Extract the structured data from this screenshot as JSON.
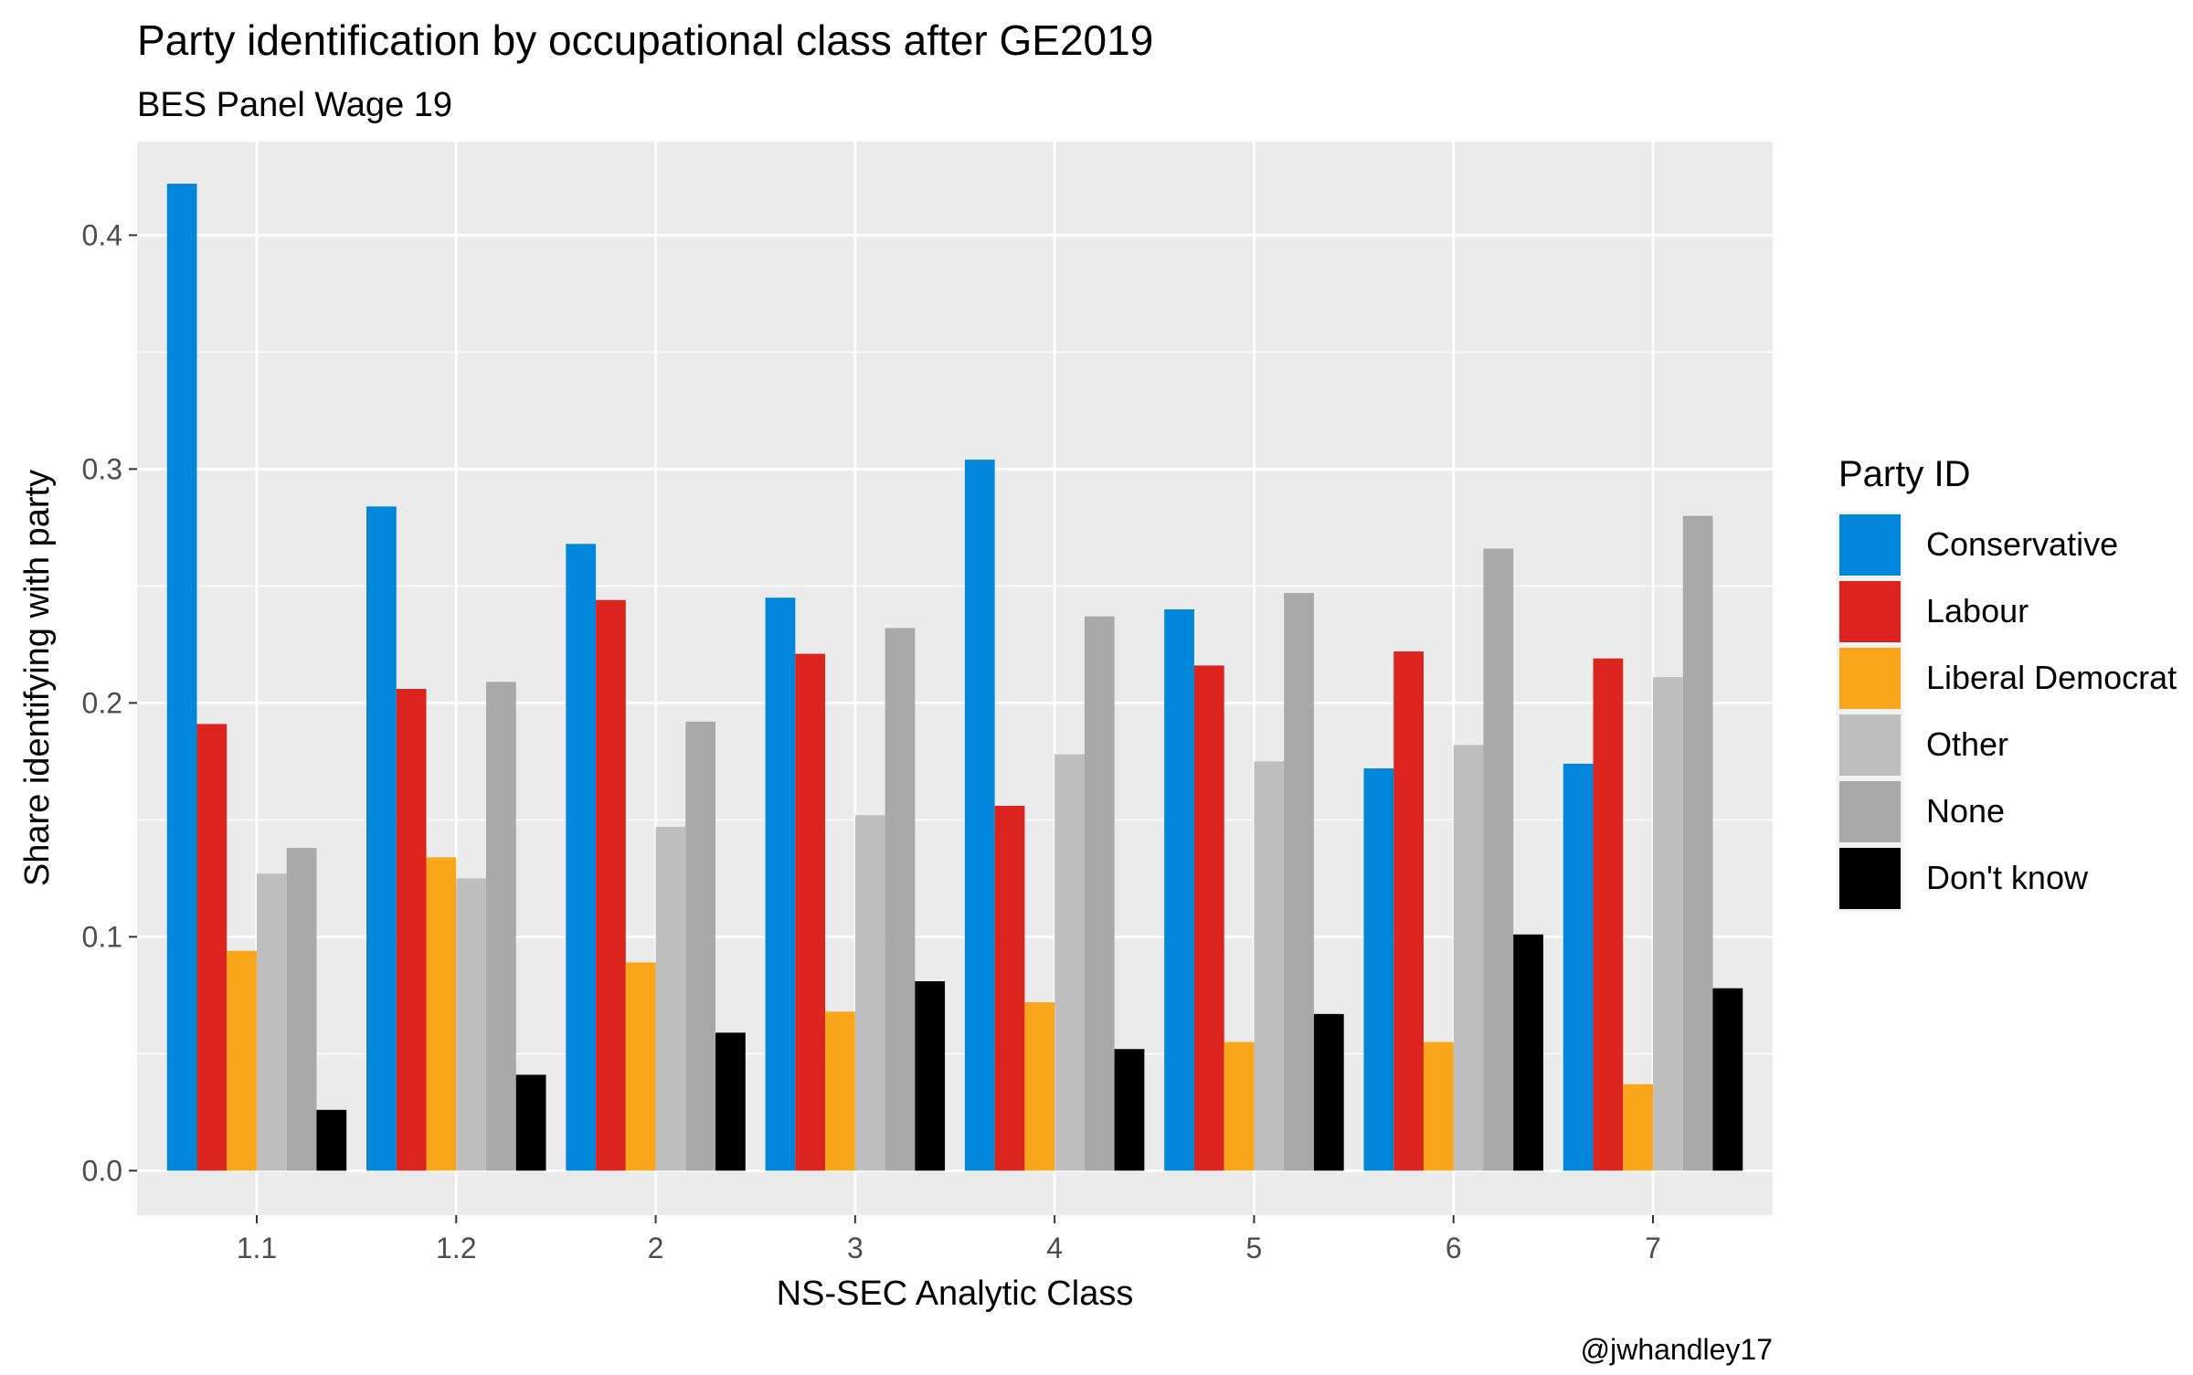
{
  "chart_data": {
    "type": "bar",
    "title": "Party identification by occupational class after GE2019",
    "subtitle": "BES Panel Wage 19",
    "xlabel": "NS-SEC Analytic Class",
    "ylabel": "Share identifying with party",
    "caption": "@jwhandley17",
    "legend_title": "Party ID",
    "legend_position": "right",
    "grid": true,
    "ylim": [
      -0.019,
      0.44
    ],
    "yticks": [
      0.0,
      0.1,
      0.2,
      0.3,
      0.4
    ],
    "ytick_labels": [
      "0.0",
      "0.1",
      "0.2",
      "0.3",
      "0.4"
    ],
    "categories": [
      "1.1",
      "1.2",
      "2",
      "3",
      "4",
      "5",
      "6",
      "7"
    ],
    "series": [
      {
        "name": "Conservative",
        "color": "#0087DC",
        "values": [
          0.422,
          0.284,
          0.268,
          0.245,
          0.304,
          0.24,
          0.172,
          0.174
        ]
      },
      {
        "name": "Labour",
        "color": "#DC241F",
        "values": [
          0.191,
          0.206,
          0.244,
          0.221,
          0.156,
          0.216,
          0.222,
          0.219
        ]
      },
      {
        "name": "Liberal Democrat",
        "color": "#FAA61A",
        "values": [
          0.094,
          0.134,
          0.089,
          0.068,
          0.072,
          0.055,
          0.055,
          0.037
        ]
      },
      {
        "name": "Other",
        "color": "#BEBEBE",
        "values": [
          0.127,
          0.125,
          0.147,
          0.152,
          0.178,
          0.175,
          0.182,
          0.211
        ]
      },
      {
        "name": "None",
        "color": "#A9A9A9",
        "values": [
          0.138,
          0.209,
          0.192,
          0.232,
          0.237,
          0.247,
          0.266,
          0.28
        ]
      },
      {
        "name": "Don't know",
        "color": "#000000",
        "values": [
          0.026,
          0.041,
          0.059,
          0.081,
          0.052,
          0.067,
          0.101,
          0.078
        ]
      }
    ]
  }
}
